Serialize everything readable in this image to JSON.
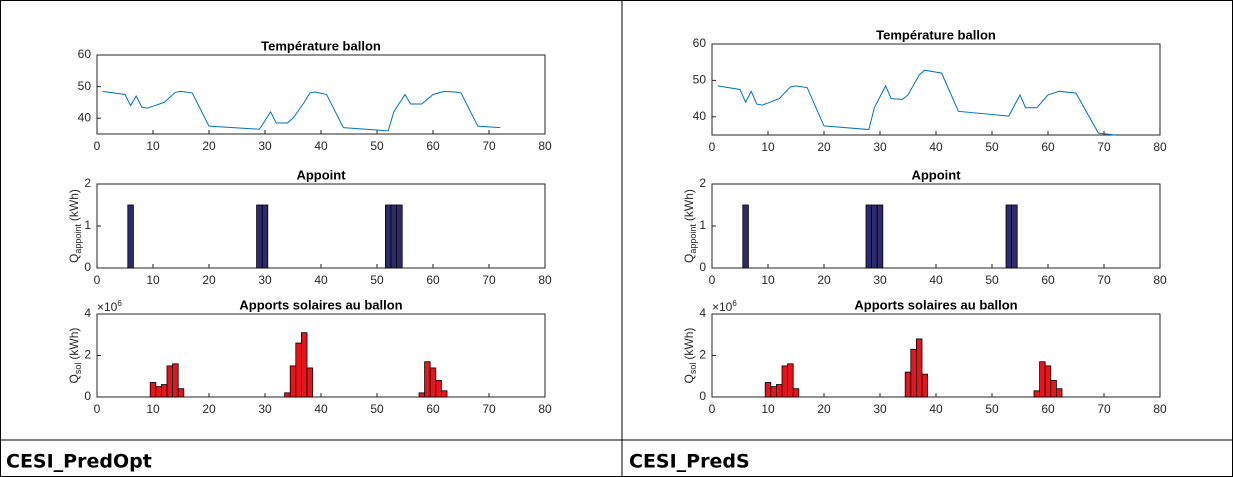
{
  "captions": [
    "CESI_PredOpt",
    "CESI_PredS"
  ],
  "chart_data": [
    {
      "type": "line",
      "title": "Température ballon",
      "color": "#0072bd",
      "x": [
        1,
        5,
        6,
        7,
        8,
        9,
        10,
        12,
        14,
        15,
        17,
        20,
        29,
        31,
        32,
        34,
        35,
        37,
        38,
        39,
        41,
        44,
        52,
        53,
        55,
        56,
        58,
        60,
        62,
        64,
        65,
        68,
        72
      ],
      "values": [
        48.5,
        47.5,
        44,
        47,
        43.5,
        43.2,
        43.8,
        45,
        48.2,
        48.5,
        48,
        37.5,
        36.5,
        42,
        38.5,
        38.5,
        40,
        45,
        48,
        48.3,
        47.5,
        37,
        36,
        42,
        47.5,
        44.5,
        44.5,
        47.5,
        48.5,
        48.3,
        48,
        37.5,
        37
      ],
      "xlim": [
        0,
        80
      ],
      "xticks": [
        0,
        10,
        20,
        30,
        40,
        50,
        60,
        70,
        80
      ],
      "ylim": [
        35,
        60
      ],
      "yticks": [
        40,
        50,
        60
      ]
    },
    {
      "type": "bar",
      "title": "Appoint",
      "color": "#2e2a6e",
      "ylabel": "Q",
      "ylabel_sub": "appoint",
      "ylabel_unit": "(kWh)",
      "x": [
        6,
        29,
        30,
        52,
        53,
        54
      ],
      "values": [
        1.5,
        1.5,
        1.5,
        1.5,
        1.5,
        1.5
      ],
      "xlim": [
        0,
        80
      ],
      "xticks": [
        0,
        10,
        20,
        30,
        40,
        50,
        60,
        70,
        80
      ],
      "ylim": [
        0,
        2
      ],
      "yticks": [
        0,
        1,
        2
      ]
    },
    {
      "type": "bar",
      "title": "Apports solaires au ballon",
      "color": "#e8141b",
      "ylabel": "Q",
      "ylabel_sub": "sol",
      "ylabel_unit": "(kWh)",
      "y_exponent_base": "×10",
      "y_exponent": "6",
      "x": [
        10,
        11,
        12,
        13,
        14,
        15,
        34,
        35,
        36,
        37,
        38,
        58,
        59,
        60,
        61,
        62
      ],
      "values": [
        0.7,
        0.5,
        0.6,
        1.5,
        1.6,
        0.4,
        0.2,
        1.5,
        2.6,
        3.1,
        1.4,
        0.2,
        1.7,
        1.4,
        0.8,
        0.3
      ],
      "xlim": [
        0,
        80
      ],
      "xticks": [
        0,
        10,
        20,
        30,
        40,
        50,
        60,
        70,
        80
      ],
      "ylim": [
        0,
        4
      ],
      "yticks": [
        0,
        2,
        4
      ]
    },
    {
      "type": "line",
      "title": "Température ballon",
      "color": "#0072bd",
      "x": [
        1,
        5,
        6,
        7,
        8,
        9,
        10,
        12,
        14,
        15,
        17,
        20,
        28,
        29,
        31,
        32,
        34,
        35,
        37,
        38,
        41,
        44,
        53,
        55,
        56,
        58,
        60,
        62,
        65,
        69,
        72
      ],
      "values": [
        48.5,
        47.5,
        44,
        47,
        43.5,
        43.2,
        43.8,
        45,
        48.2,
        48.5,
        48,
        37.5,
        36.5,
        42.5,
        48.5,
        45,
        44.8,
        46,
        51.5,
        52.8,
        52,
        41.5,
        40.2,
        46,
        42.5,
        42.5,
        46,
        47,
        46.5,
        35.5,
        35
      ],
      "xlim": [
        0,
        80
      ],
      "xticks": [
        0,
        10,
        20,
        30,
        40,
        50,
        60,
        70,
        80
      ],
      "ylim": [
        35,
        60
      ],
      "yticks": [
        40,
        50,
        60
      ]
    },
    {
      "type": "bar",
      "title": "Appoint",
      "color": "#2e2a6e",
      "ylabel": "Q",
      "ylabel_sub": "appoint",
      "ylabel_unit": "(kWh)",
      "x": [
        6,
        28,
        29,
        30,
        53,
        54
      ],
      "values": [
        1.5,
        1.5,
        1.5,
        1.5,
        1.5,
        1.5
      ],
      "xlim": [
        0,
        80
      ],
      "xticks": [
        0,
        10,
        20,
        30,
        40,
        50,
        60,
        70,
        80
      ],
      "ylim": [
        0,
        2
      ],
      "yticks": [
        0,
        1,
        2
      ]
    },
    {
      "type": "bar",
      "title": "Apports solaires au ballon",
      "color": "#e8141b",
      "ylabel": "Q",
      "ylabel_sub": "sol",
      "ylabel_unit": "(kWh)",
      "y_exponent_base": "×10",
      "y_exponent": "6",
      "x": [
        10,
        11,
        12,
        13,
        14,
        15,
        35,
        36,
        37,
        38,
        58,
        59,
        60,
        61,
        62
      ],
      "values": [
        0.7,
        0.5,
        0.6,
        1.5,
        1.6,
        0.4,
        1.2,
        2.3,
        2.8,
        1.1,
        0.3,
        1.7,
        1.5,
        0.8,
        0.4
      ],
      "xlim": [
        0,
        80
      ],
      "xticks": [
        0,
        10,
        20,
        30,
        40,
        50,
        60,
        70,
        80
      ],
      "ylim": [
        0,
        4
      ],
      "yticks": [
        0,
        2,
        4
      ]
    }
  ]
}
